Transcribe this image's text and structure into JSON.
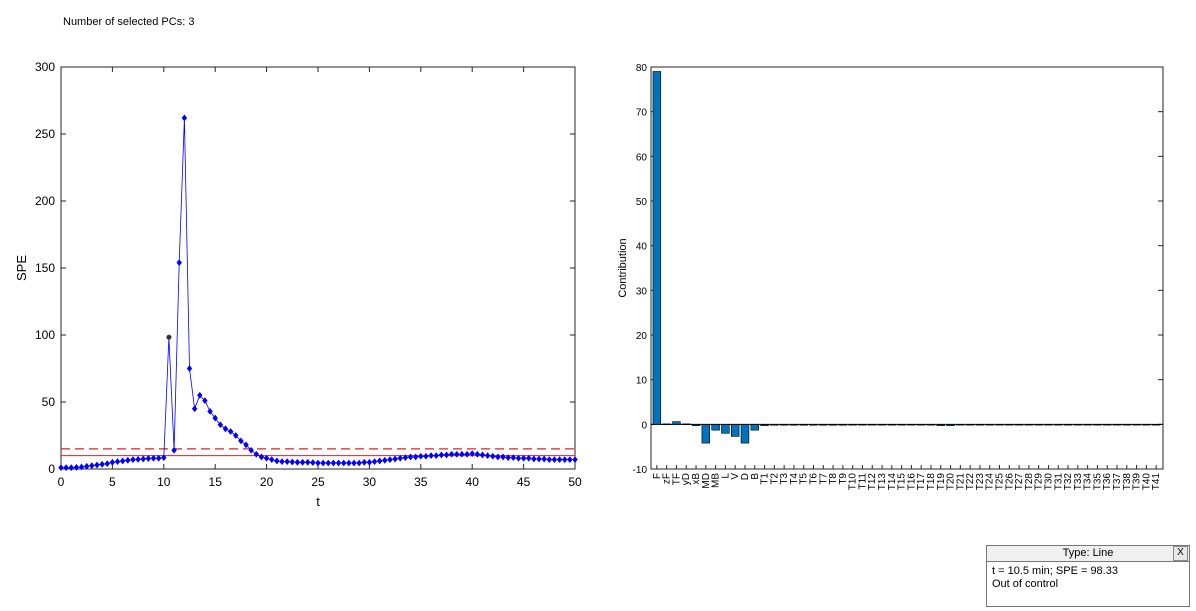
{
  "header": {
    "pcs_label": "Number of selected PCs: 3"
  },
  "info_box": {
    "title": "Type: Line",
    "close_label": "X",
    "line1": "t = 10.5 min; SPE = 98.33",
    "line2": "Out of control"
  },
  "colors": {
    "spe_line": "#0000ff",
    "limit": "#e02020",
    "bar_fill": "#0072bd",
    "highlight_point": "#333333"
  },
  "chart_data": [
    {
      "type": "line",
      "xlabel": "t",
      "ylabel": "SPE",
      "xlim": [
        0,
        50
      ],
      "ylim": [
        0,
        300
      ],
      "xticks": [
        0,
        5,
        10,
        15,
        20,
        25,
        30,
        35,
        40,
        45,
        50
      ],
      "yticks": [
        0,
        50,
        100,
        150,
        200,
        250,
        300
      ],
      "highlight": {
        "x": 10.5,
        "y": 98.33
      },
      "limits": {
        "solid": 10,
        "dashed": 15
      },
      "x": [
        0,
        0.5,
        1,
        1.5,
        2,
        2.5,
        3,
        3.5,
        4,
        4.5,
        5,
        5.5,
        6,
        6.5,
        7,
        7.5,
        8,
        8.5,
        9,
        9.5,
        10,
        10.5,
        11,
        11.5,
        12,
        12.5,
        13,
        13.5,
        14,
        14.5,
        15,
        15.5,
        16,
        16.5,
        17,
        17.5,
        18,
        18.5,
        19,
        19.5,
        20,
        20.5,
        21,
        21.5,
        22,
        22.5,
        23,
        23.5,
        24,
        24.5,
        25,
        25.5,
        26,
        26.5,
        27,
        27.5,
        28,
        28.5,
        29,
        29.5,
        30,
        30.5,
        31,
        31.5,
        32,
        32.5,
        33,
        33.5,
        34,
        34.5,
        35,
        35.5,
        36,
        36.5,
        37,
        37.5,
        38,
        38.5,
        39,
        39.5,
        40,
        40.5,
        41,
        41.5,
        42,
        42.5,
        43,
        43.5,
        44,
        44.5,
        45,
        45.5,
        46,
        46.5,
        47,
        47.5,
        48,
        48.5,
        49,
        49.5,
        50
      ],
      "y": [
        1,
        1,
        1,
        1.2,
        1.5,
        2,
        2.5,
        3,
        3.5,
        4,
        5,
        5.5,
        6,
        6.5,
        7,
        7.2,
        7.5,
        7.8,
        8,
        8,
        8.5,
        98.33,
        14,
        154,
        262,
        75,
        45,
        55,
        51,
        43,
        38,
        33,
        30,
        28,
        25,
        21,
        18,
        14,
        11,
        9,
        8,
        7,
        6,
        5.5,
        5.5,
        5.2,
        5,
        5,
        5,
        4.8,
        4.5,
        4.5,
        4.5,
        4.5,
        4.5,
        4.5,
        4.5,
        4.5,
        4.5,
        5,
        5,
        5.5,
        6,
        6.5,
        7,
        7.5,
        8,
        8.5,
        9,
        9,
        9.5,
        9.5,
        10,
        10,
        10.5,
        10.5,
        11,
        11,
        11,
        11,
        11.5,
        11,
        10.5,
        10,
        9.5,
        9,
        9,
        8.5,
        8.5,
        8,
        8,
        8,
        7.5,
        7.5,
        7.5,
        7,
        7,
        7,
        7,
        7,
        7
      ]
    },
    {
      "type": "bar",
      "ylabel": "Contribution",
      "ylim": [
        -10,
        80
      ],
      "yticks": [
        -10,
        0,
        10,
        20,
        30,
        40,
        50,
        60,
        70,
        80
      ],
      "categories": [
        "F",
        "zF",
        "TF",
        "yD",
        "xB",
        "MD",
        "MB",
        "L",
        "V",
        "D",
        "B",
        "T1",
        "T2",
        "T3",
        "T4",
        "T5",
        "T6",
        "T7",
        "T8",
        "T9",
        "T10",
        "T11",
        "T12",
        "T13",
        "T14",
        "T15",
        "T16",
        "T17",
        "T18",
        "T19",
        "T20",
        "T21",
        "T22",
        "T23",
        "T24",
        "T25",
        "T26",
        "T27",
        "T28",
        "T29",
        "T30",
        "T31",
        "T32",
        "T33",
        "T34",
        "T35",
        "T36",
        "T37",
        "T38",
        "T39",
        "T40",
        "T41"
      ],
      "values": [
        79,
        0.1,
        0.6,
        0.1,
        -0.3,
        -4.2,
        -1.3,
        -2,
        -2.7,
        -4.2,
        -1.3,
        -0.3,
        -0.2,
        -0.2,
        -0.2,
        -0.2,
        -0.2,
        -0.2,
        -0.2,
        -0.2,
        -0.1,
        -0.1,
        -0.1,
        -0.1,
        -0.1,
        -0.1,
        -0.1,
        -0.1,
        -0.1,
        -0.3,
        -0.3,
        -0.1,
        -0.1,
        -0.1,
        -0.1,
        -0.1,
        -0.1,
        -0.1,
        -0.1,
        -0.1,
        -0.1,
        -0.1,
        -0.1,
        -0.1,
        -0.1,
        -0.1,
        -0.1,
        -0.1,
        -0.1,
        -0.1,
        -0.1,
        -0.1
      ]
    }
  ]
}
